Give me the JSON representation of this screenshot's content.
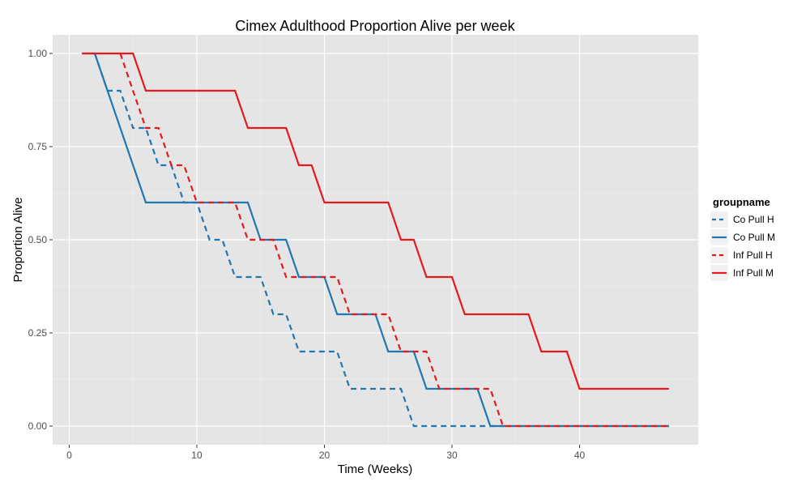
{
  "chart_data": {
    "type": "line",
    "title": "Cimex Adulthood Proportion Alive per week",
    "xlabel": "Time (Weeks)",
    "ylabel": "Proportion Alive",
    "xlim": [
      -1.3,
      49.3
    ],
    "ylim": [
      -0.05,
      1.05
    ],
    "x_ticks": [
      0,
      10,
      20,
      30,
      40
    ],
    "y_ticks": [
      0,
      0.25,
      0.5,
      0.75,
      1
    ],
    "y_tick_labels": [
      "0.00",
      "0.25",
      "0.50",
      "0.75",
      "1.00"
    ],
    "grid": true,
    "legend": {
      "title": "groupname",
      "position": "right"
    },
    "series": [
      {
        "name": "Co Pull H",
        "color": "#1f77b4",
        "dash": "dashed",
        "points": [
          [
            2,
            1.0
          ],
          [
            3,
            0.9
          ],
          [
            4,
            0.9
          ],
          [
            5,
            0.8
          ],
          [
            6,
            0.8
          ],
          [
            7,
            0.7
          ],
          [
            8,
            0.7
          ],
          [
            9,
            0.6
          ],
          [
            10,
            0.6
          ],
          [
            11,
            0.5
          ],
          [
            12,
            0.5
          ],
          [
            13,
            0.4
          ],
          [
            15,
            0.4
          ],
          [
            16,
            0.3
          ],
          [
            17,
            0.3
          ],
          [
            18,
            0.2
          ],
          [
            20,
            0.2
          ],
          [
            21,
            0.2
          ],
          [
            22,
            0.1
          ],
          [
            25,
            0.1
          ],
          [
            26,
            0.1
          ],
          [
            27,
            0.0
          ],
          [
            47,
            0.0
          ]
        ]
      },
      {
        "name": "Co Pull M",
        "color": "#1f77b4",
        "dash": "solid",
        "points": [
          [
            1,
            1.0
          ],
          [
            2,
            1.0
          ],
          [
            6,
            0.6
          ],
          [
            14,
            0.6
          ],
          [
            15,
            0.5
          ],
          [
            17,
            0.5
          ],
          [
            18,
            0.4
          ],
          [
            20,
            0.4
          ],
          [
            21,
            0.3
          ],
          [
            24,
            0.3
          ],
          [
            25,
            0.2
          ],
          [
            27,
            0.2
          ],
          [
            28,
            0.1
          ],
          [
            32,
            0.1
          ],
          [
            33,
            0.0
          ],
          [
            47,
            0.0
          ]
        ]
      },
      {
        "name": "Inf Pull H",
        "color": "#e41a1c",
        "dash": "dashed",
        "points": [
          [
            4,
            1.0
          ],
          [
            5,
            0.9
          ],
          [
            6,
            0.8
          ],
          [
            7,
            0.8
          ],
          [
            8,
            0.7
          ],
          [
            9,
            0.7
          ],
          [
            10,
            0.6
          ],
          [
            13,
            0.6
          ],
          [
            14,
            0.5
          ],
          [
            16,
            0.5
          ],
          [
            17,
            0.4
          ],
          [
            21,
            0.4
          ],
          [
            22,
            0.3
          ],
          [
            25,
            0.3
          ],
          [
            26,
            0.2
          ],
          [
            28,
            0.2
          ],
          [
            29,
            0.1
          ],
          [
            33,
            0.1
          ],
          [
            34,
            0.0
          ],
          [
            47,
            0.0
          ]
        ]
      },
      {
        "name": "Inf Pull M",
        "color": "#e41a1c",
        "dash": "solid",
        "points": [
          [
            1,
            1.0
          ],
          [
            5,
            1.0
          ],
          [
            6,
            0.9
          ],
          [
            13,
            0.9
          ],
          [
            14,
            0.8
          ],
          [
            17,
            0.8
          ],
          [
            18,
            0.7
          ],
          [
            19,
            0.7
          ],
          [
            20,
            0.6
          ],
          [
            25,
            0.6
          ],
          [
            26,
            0.5
          ],
          [
            27,
            0.5
          ],
          [
            28,
            0.4
          ],
          [
            30,
            0.4
          ],
          [
            31,
            0.3
          ],
          [
            36,
            0.3
          ],
          [
            37,
            0.2
          ],
          [
            39,
            0.2
          ],
          [
            40,
            0.1
          ],
          [
            47,
            0.1
          ]
        ]
      }
    ]
  }
}
